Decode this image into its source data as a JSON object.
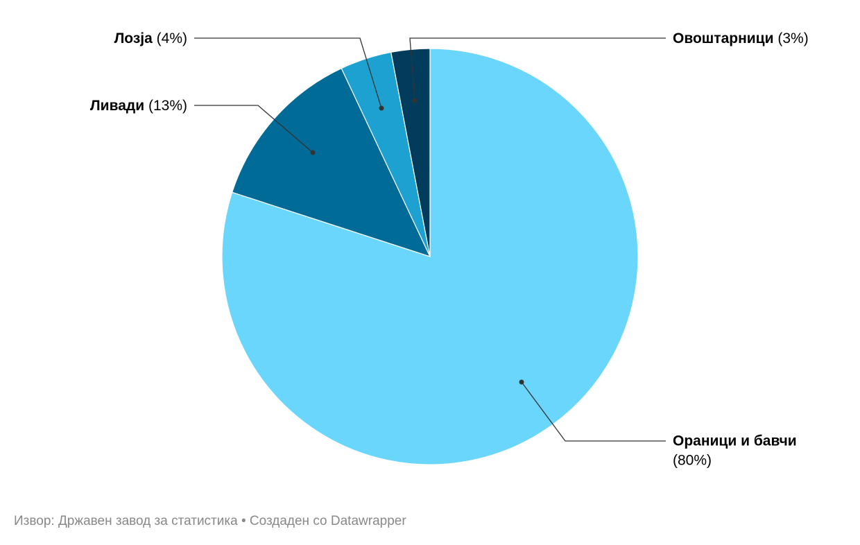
{
  "chart_data": {
    "type": "pie",
    "categories": [
      "Ораници и бавчи",
      "Ливади",
      "Лозја",
      "Овоштарници"
    ],
    "values": [
      80,
      13,
      4,
      3
    ],
    "value_labels": [
      "(80%)",
      "(13%)",
      "(4%)",
      "(3%)"
    ],
    "colors": [
      "#6ad6fc",
      "#006b96",
      "#1ca1d0",
      "#023c5c"
    ],
    "source": "Извор: Државен завод за статистика • Создаден со Datawrapper"
  }
}
